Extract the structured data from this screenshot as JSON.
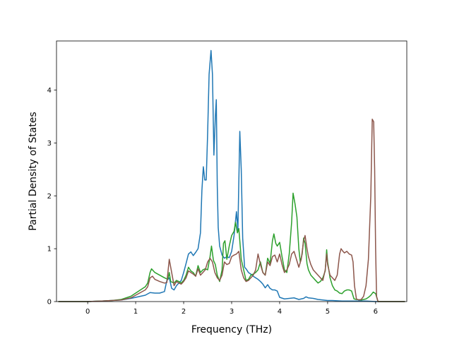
{
  "chart_data": {
    "type": "line",
    "title": "",
    "xlabel": "Frequency (THz)",
    "ylabel": "Partial Density of States",
    "xlim": [
      -0.65,
      6.65
    ],
    "ylim": [
      0,
      4.93
    ],
    "xticks": [
      0,
      1,
      2,
      3,
      4,
      5,
      6
    ],
    "xtick_labels": [
      "0",
      "1",
      "2",
      "3",
      "4",
      "5",
      "6"
    ],
    "yticks": [
      0,
      1,
      2,
      3,
      4
    ],
    "ytick_labels": [
      "0",
      "1",
      "2",
      "3",
      "4"
    ],
    "grid": false,
    "legend": "none",
    "series": [
      {
        "color": "#1f77b4",
        "points": [
          [
            -0.6,
            0
          ],
          [
            0,
            0
          ],
          [
            0.3,
            0.01
          ],
          [
            0.5,
            0.02
          ],
          [
            0.7,
            0.03
          ],
          [
            0.9,
            0.06
          ],
          [
            1.0,
            0.08
          ],
          [
            1.1,
            0.1
          ],
          [
            1.2,
            0.12
          ],
          [
            1.3,
            0.17
          ],
          [
            1.4,
            0.16
          ],
          [
            1.5,
            0.16
          ],
          [
            1.6,
            0.19
          ],
          [
            1.65,
            0.4
          ],
          [
            1.7,
            0.45
          ],
          [
            1.75,
            0.25
          ],
          [
            1.8,
            0.22
          ],
          [
            1.85,
            0.3
          ],
          [
            1.9,
            0.35
          ],
          [
            1.95,
            0.4
          ],
          [
            2.0,
            0.55
          ],
          [
            2.05,
            0.72
          ],
          [
            2.1,
            0.9
          ],
          [
            2.15,
            0.94
          ],
          [
            2.2,
            0.87
          ],
          [
            2.25,
            0.93
          ],
          [
            2.3,
            1.0
          ],
          [
            2.35,
            1.3
          ],
          [
            2.38,
            2.1
          ],
          [
            2.41,
            2.55
          ],
          [
            2.44,
            2.3
          ],
          [
            2.47,
            2.3
          ],
          [
            2.5,
            3.2
          ],
          [
            2.53,
            4.3
          ],
          [
            2.57,
            4.75
          ],
          [
            2.6,
            4.3
          ],
          [
            2.63,
            2.77
          ],
          [
            2.66,
            3.5
          ],
          [
            2.68,
            3.82
          ],
          [
            2.7,
            2.2
          ],
          [
            2.72,
            1.4
          ],
          [
            2.75,
            1.05
          ],
          [
            2.8,
            0.88
          ],
          [
            2.85,
            0.82
          ],
          [
            2.9,
            0.85
          ],
          [
            2.95,
            0.83
          ],
          [
            3.0,
            0.95
          ],
          [
            3.05,
            1.25
          ],
          [
            3.1,
            1.7
          ],
          [
            3.13,
            1.35
          ],
          [
            3.17,
            3.22
          ],
          [
            3.2,
            2.5
          ],
          [
            3.23,
            1.2
          ],
          [
            3.27,
            0.65
          ],
          [
            3.3,
            0.62
          ],
          [
            3.35,
            0.55
          ],
          [
            3.4,
            0.52
          ],
          [
            3.45,
            0.48
          ],
          [
            3.5,
            0.45
          ],
          [
            3.55,
            0.42
          ],
          [
            3.6,
            0.38
          ],
          [
            3.65,
            0.33
          ],
          [
            3.7,
            0.26
          ],
          [
            3.75,
            0.32
          ],
          [
            3.8,
            0.25
          ],
          [
            3.85,
            0.22
          ],
          [
            3.9,
            0.22
          ],
          [
            3.95,
            0.2
          ],
          [
            4.0,
            0.08
          ],
          [
            4.1,
            0.05
          ],
          [
            4.2,
            0.06
          ],
          [
            4.3,
            0.07
          ],
          [
            4.4,
            0.04
          ],
          [
            4.5,
            0.06
          ],
          [
            4.55,
            0.09
          ],
          [
            4.6,
            0.07
          ],
          [
            4.7,
            0.06
          ],
          [
            4.8,
            0.04
          ],
          [
            4.9,
            0.03
          ],
          [
            5.0,
            0.02
          ],
          [
            5.1,
            0.02
          ],
          [
            5.3,
            0.01
          ],
          [
            5.5,
            0.01
          ],
          [
            5.8,
            0.01
          ],
          [
            6.0,
            0
          ],
          [
            6.6,
            0
          ]
        ]
      },
      {
        "color": "#2ca02c",
        "points": [
          [
            -0.6,
            0
          ],
          [
            0,
            0
          ],
          [
            0.3,
            0.01
          ],
          [
            0.5,
            0.02
          ],
          [
            0.7,
            0.04
          ],
          [
            0.9,
            0.1
          ],
          [
            1.0,
            0.16
          ],
          [
            1.1,
            0.22
          ],
          [
            1.2,
            0.28
          ],
          [
            1.25,
            0.35
          ],
          [
            1.3,
            0.55
          ],
          [
            1.33,
            0.62
          ],
          [
            1.4,
            0.55
          ],
          [
            1.5,
            0.5
          ],
          [
            1.6,
            0.45
          ],
          [
            1.67,
            0.42
          ],
          [
            1.7,
            0.55
          ],
          [
            1.73,
            0.38
          ],
          [
            1.8,
            0.35
          ],
          [
            1.85,
            0.4
          ],
          [
            1.9,
            0.38
          ],
          [
            1.95,
            0.35
          ],
          [
            2.0,
            0.4
          ],
          [
            2.05,
            0.5
          ],
          [
            2.1,
            0.65
          ],
          [
            2.15,
            0.58
          ],
          [
            2.2,
            0.55
          ],
          [
            2.25,
            0.48
          ],
          [
            2.3,
            0.68
          ],
          [
            2.35,
            0.55
          ],
          [
            2.4,
            0.6
          ],
          [
            2.45,
            0.62
          ],
          [
            2.5,
            0.6
          ],
          [
            2.55,
            0.85
          ],
          [
            2.58,
            1.05
          ],
          [
            2.62,
            0.78
          ],
          [
            2.66,
            0.7
          ],
          [
            2.7,
            0.5
          ],
          [
            2.75,
            0.38
          ],
          [
            2.8,
            0.6
          ],
          [
            2.83,
            1.1
          ],
          [
            2.86,
            1.15
          ],
          [
            2.9,
            0.8
          ],
          [
            2.95,
            1.05
          ],
          [
            3.0,
            1.25
          ],
          [
            3.05,
            1.33
          ],
          [
            3.08,
            1.5
          ],
          [
            3.12,
            1.3
          ],
          [
            3.15,
            1.38
          ],
          [
            3.2,
            0.8
          ],
          [
            3.25,
            0.6
          ],
          [
            3.3,
            0.4
          ],
          [
            3.35,
            0.42
          ],
          [
            3.4,
            0.5
          ],
          [
            3.45,
            0.52
          ],
          [
            3.5,
            0.55
          ],
          [
            3.55,
            0.6
          ],
          [
            3.6,
            0.75
          ],
          [
            3.65,
            0.55
          ],
          [
            3.7,
            0.5
          ],
          [
            3.75,
            0.82
          ],
          [
            3.8,
            0.72
          ],
          [
            3.85,
            1.15
          ],
          [
            3.88,
            1.28
          ],
          [
            3.92,
            1.1
          ],
          [
            3.95,
            1.05
          ],
          [
            4.0,
            1.12
          ],
          [
            4.05,
            0.85
          ],
          [
            4.1,
            0.6
          ],
          [
            4.15,
            0.55
          ],
          [
            4.2,
            0.9
          ],
          [
            4.25,
            1.5
          ],
          [
            4.28,
            2.05
          ],
          [
            4.32,
            1.85
          ],
          [
            4.36,
            1.6
          ],
          [
            4.4,
            1.0
          ],
          [
            4.43,
            0.75
          ],
          [
            4.47,
            0.9
          ],
          [
            4.5,
            1.2
          ],
          [
            4.53,
            1.1
          ],
          [
            4.57,
            0.72
          ],
          [
            4.6,
            0.6
          ],
          [
            4.65,
            0.5
          ],
          [
            4.7,
            0.45
          ],
          [
            4.75,
            0.4
          ],
          [
            4.8,
            0.35
          ],
          [
            4.85,
            0.38
          ],
          [
            4.9,
            0.45
          ],
          [
            4.95,
            0.58
          ],
          [
            4.98,
            0.98
          ],
          [
            5.0,
            0.75
          ],
          [
            5.05,
            0.45
          ],
          [
            5.1,
            0.3
          ],
          [
            5.15,
            0.22
          ],
          [
            5.2,
            0.2
          ],
          [
            5.25,
            0.16
          ],
          [
            5.3,
            0.15
          ],
          [
            5.35,
            0.2
          ],
          [
            5.4,
            0.22
          ],
          [
            5.45,
            0.22
          ],
          [
            5.5,
            0.2
          ],
          [
            5.55,
            0.05
          ],
          [
            5.6,
            0.04
          ],
          [
            5.7,
            0.03
          ],
          [
            5.8,
            0.05
          ],
          [
            5.85,
            0.08
          ],
          [
            5.9,
            0.12
          ],
          [
            5.95,
            0.18
          ],
          [
            6.0,
            0.15
          ],
          [
            6.05,
            0
          ],
          [
            6.6,
            0
          ]
        ]
      },
      {
        "color": "#8c564b",
        "points": [
          [
            -0.6,
            0
          ],
          [
            0,
            0
          ],
          [
            0.3,
            0.01
          ],
          [
            0.5,
            0.02
          ],
          [
            0.7,
            0.03
          ],
          [
            0.9,
            0.07
          ],
          [
            1.0,
            0.12
          ],
          [
            1.1,
            0.17
          ],
          [
            1.2,
            0.22
          ],
          [
            1.25,
            0.28
          ],
          [
            1.3,
            0.45
          ],
          [
            1.35,
            0.48
          ],
          [
            1.4,
            0.42
          ],
          [
            1.5,
            0.38
          ],
          [
            1.6,
            0.35
          ],
          [
            1.65,
            0.36
          ],
          [
            1.7,
            0.8
          ],
          [
            1.73,
            0.65
          ],
          [
            1.77,
            0.45
          ],
          [
            1.8,
            0.3
          ],
          [
            1.85,
            0.38
          ],
          [
            1.9,
            0.35
          ],
          [
            1.95,
            0.33
          ],
          [
            2.0,
            0.38
          ],
          [
            2.05,
            0.45
          ],
          [
            2.1,
            0.58
          ],
          [
            2.15,
            0.55
          ],
          [
            2.2,
            0.52
          ],
          [
            2.25,
            0.48
          ],
          [
            2.3,
            0.62
          ],
          [
            2.35,
            0.5
          ],
          [
            2.4,
            0.55
          ],
          [
            2.45,
            0.6
          ],
          [
            2.5,
            0.75
          ],
          [
            2.55,
            0.82
          ],
          [
            2.6,
            0.75
          ],
          [
            2.65,
            0.55
          ],
          [
            2.7,
            0.45
          ],
          [
            2.75,
            0.4
          ],
          [
            2.8,
            0.5
          ],
          [
            2.85,
            0.75
          ],
          [
            2.9,
            0.7
          ],
          [
            2.95,
            0.72
          ],
          [
            3.0,
            0.85
          ],
          [
            3.05,
            0.88
          ],
          [
            3.1,
            0.9
          ],
          [
            3.15,
            0.95
          ],
          [
            3.2,
            0.6
          ],
          [
            3.25,
            0.45
          ],
          [
            3.3,
            0.38
          ],
          [
            3.35,
            0.4
          ],
          [
            3.4,
            0.45
          ],
          [
            3.45,
            0.5
          ],
          [
            3.5,
            0.6
          ],
          [
            3.55,
            0.9
          ],
          [
            3.6,
            0.7
          ],
          [
            3.65,
            0.55
          ],
          [
            3.7,
            0.5
          ],
          [
            3.75,
            0.75
          ],
          [
            3.8,
            0.68
          ],
          [
            3.85,
            0.85
          ],
          [
            3.9,
            0.88
          ],
          [
            3.95,
            0.75
          ],
          [
            4.0,
            0.9
          ],
          [
            4.05,
            0.7
          ],
          [
            4.1,
            0.55
          ],
          [
            4.15,
            0.6
          ],
          [
            4.2,
            0.7
          ],
          [
            4.25,
            0.9
          ],
          [
            4.3,
            0.95
          ],
          [
            4.35,
            0.8
          ],
          [
            4.4,
            0.65
          ],
          [
            4.45,
            0.8
          ],
          [
            4.5,
            1.15
          ],
          [
            4.53,
            1.25
          ],
          [
            4.57,
            1.0
          ],
          [
            4.6,
            0.85
          ],
          [
            4.65,
            0.7
          ],
          [
            4.7,
            0.6
          ],
          [
            4.75,
            0.55
          ],
          [
            4.8,
            0.5
          ],
          [
            4.85,
            0.45
          ],
          [
            4.9,
            0.4
          ],
          [
            4.95,
            0.6
          ],
          [
            4.98,
            0.9
          ],
          [
            5.0,
            0.7
          ],
          [
            5.05,
            0.5
          ],
          [
            5.1,
            0.45
          ],
          [
            5.15,
            0.4
          ],
          [
            5.2,
            0.5
          ],
          [
            5.25,
            0.9
          ],
          [
            5.28,
            1.0
          ],
          [
            5.32,
            0.95
          ],
          [
            5.35,
            0.92
          ],
          [
            5.4,
            0.95
          ],
          [
            5.45,
            0.9
          ],
          [
            5.5,
            0.88
          ],
          [
            5.53,
            0.75
          ],
          [
            5.56,
            0.3
          ],
          [
            5.6,
            0.05
          ],
          [
            5.65,
            0.03
          ],
          [
            5.7,
            0.04
          ],
          [
            5.75,
            0.1
          ],
          [
            5.8,
            0.3
          ],
          [
            5.85,
            0.8
          ],
          [
            5.9,
            2.0
          ],
          [
            5.93,
            3.45
          ],
          [
            5.96,
            3.4
          ],
          [
            5.98,
            2.5
          ],
          [
            6.0,
            1.0
          ],
          [
            6.02,
            0.1
          ],
          [
            6.05,
            0
          ],
          [
            6.6,
            0
          ]
        ]
      }
    ]
  }
}
